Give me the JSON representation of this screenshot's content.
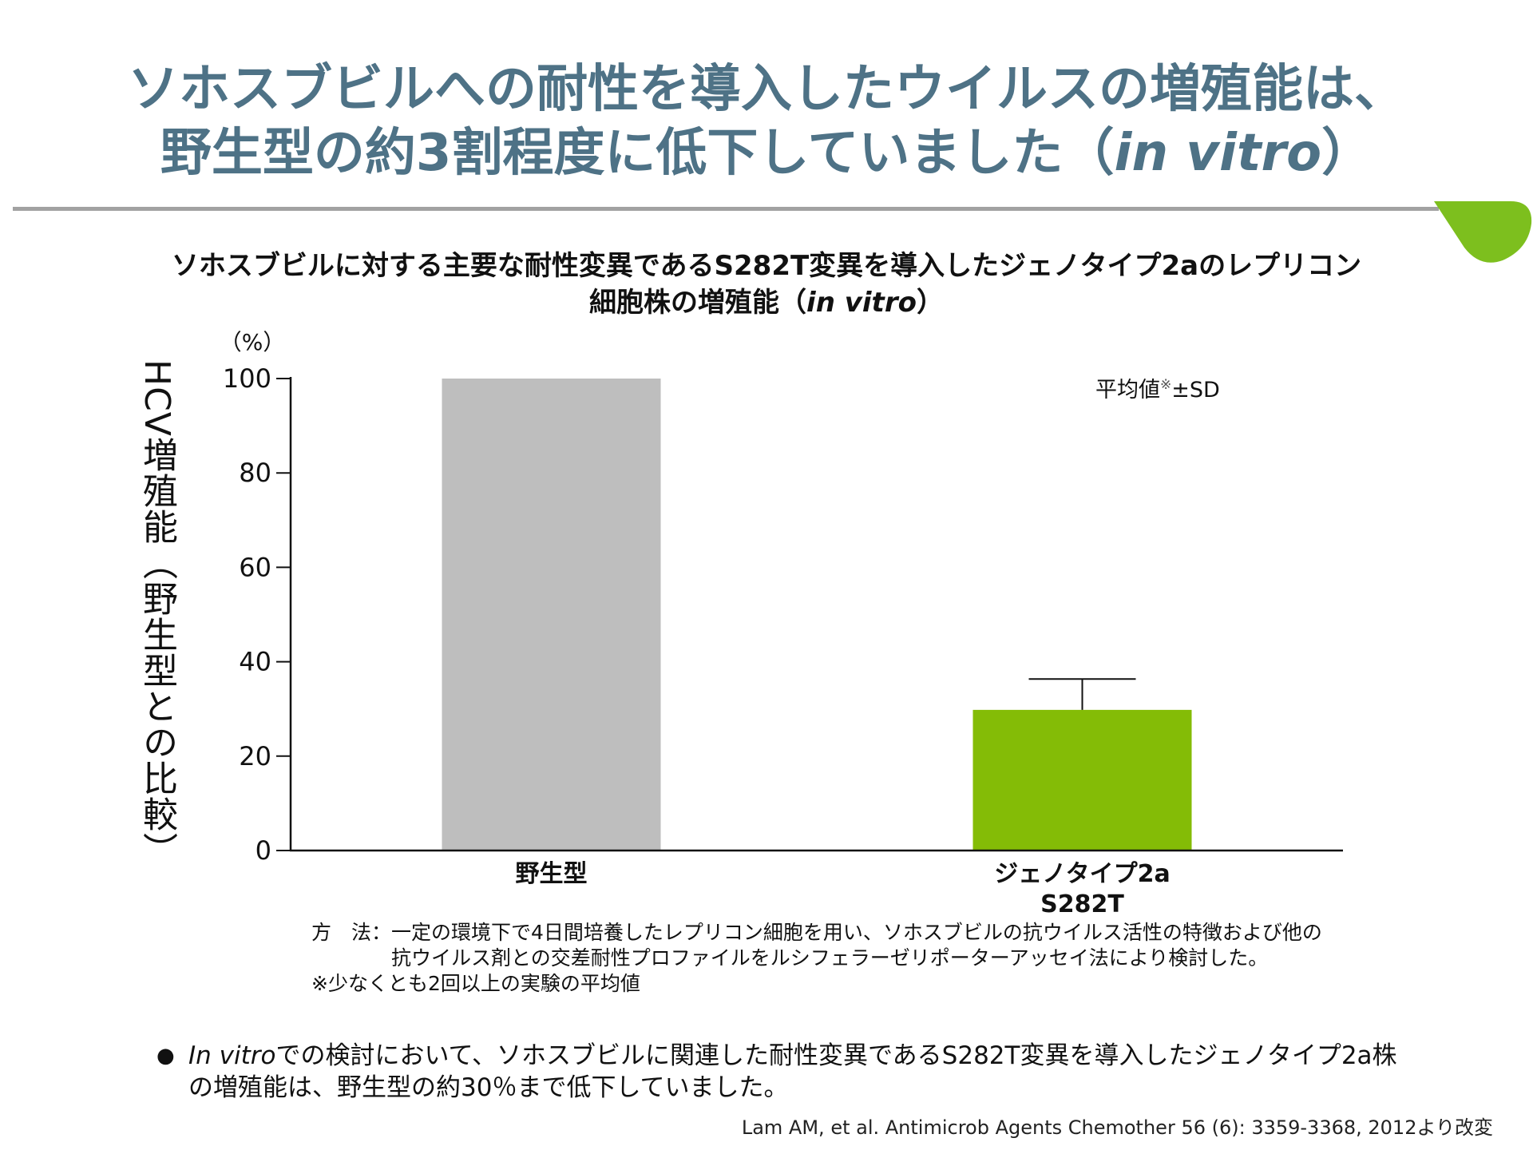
{
  "slide": {
    "title_line1": "ソホスブビルへの耐性を導入したウイルスの増殖能は、",
    "title_line2_pre": "野生型の約3割程度に低下していました（",
    "title_line2_italic": "in vitro",
    "title_line2_post": "）",
    "accent_color": "#4e7286",
    "leaf_color": "#7dbf1e"
  },
  "chart_data": {
    "type": "bar",
    "title_line1": "ソホスブビルに対する主要な耐性変異であるS282T変異を導入したジェノタイプ2aのレプリコン",
    "title_line2_pre": "細胞株の増殖能（",
    "title_line2_italic": "in vitro",
    "title_line2_post": "）",
    "ylabel": "HCV増殖能（野生型との比較）",
    "yunit": "（%）",
    "ylim": [
      0,
      100
    ],
    "yticks": [
      "0",
      "20",
      "40",
      "60",
      "80",
      "100"
    ],
    "grid": false,
    "categories": [
      {
        "label_lines": [
          "野生型"
        ]
      },
      {
        "label_lines": [
          "ジェノタイプ2a",
          "S282T"
        ]
      }
    ],
    "values": [
      100,
      29.8
    ],
    "error_upper": [
      null,
      36.5
    ],
    "colors": [
      "#bebebe",
      "#84bc06"
    ],
    "legend_note_pre": "平均値",
    "legend_note_sup": "※",
    "legend_note_post": "±SD"
  },
  "notes": {
    "method_label": "方　法：",
    "method_text": "一定の環境下で4日間培養したレプリコン細胞を用い、ソホスブビルの抗ウイルス活性の特徴および他の抗ウイルス剤との交差耐性プロファイルをルシフェラーゼリポーターアッセイ法により検討した。",
    "footnote": "※少なくとも2回以上の実験の平均値"
  },
  "bullet": {
    "italic": "In vitro",
    "text": "での検討において、ソホスブビルに関連した耐性変異であるS282T変異を導入したジェノタイプ2a株の増殖能は、野生型の約30％まで低下していました。"
  },
  "citation": "Lam AM, et al. Antimicrob Agents Chemother 56 (6): 3359-3368, 2012より改変"
}
